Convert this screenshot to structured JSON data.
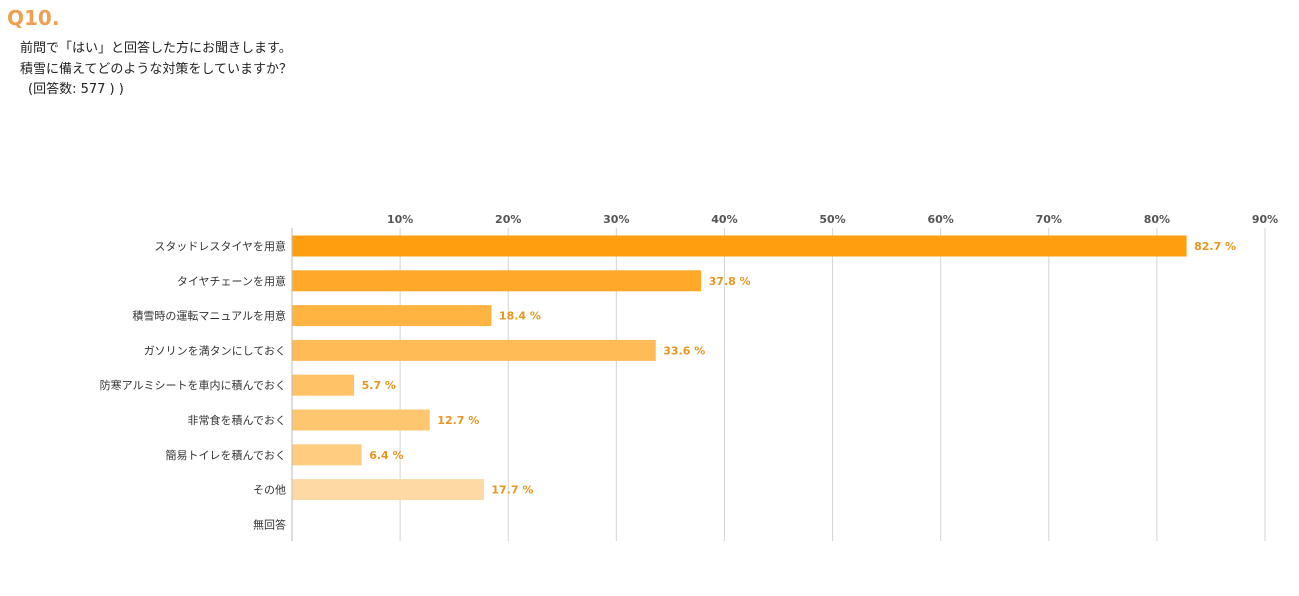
{
  "question": {
    "number": "Q10.",
    "lines": [
      "前問で「はい」と回答した方にお聞きします。",
      "積雪に備えてどのような対策をしていますか？",
      "(回答数: 577 ) )"
    ]
  },
  "chart_data": {
    "type": "bar",
    "orientation": "horizontal",
    "title": "",
    "xlabel": "",
    "ylabel": "",
    "xlim": [
      0,
      90
    ],
    "ticks": [
      "10%",
      "20%",
      "30%",
      "40%",
      "50%",
      "60%",
      "70%",
      "80%",
      "90%"
    ],
    "tick_values": [
      10,
      20,
      30,
      40,
      50,
      60,
      70,
      80,
      90
    ],
    "grid": true,
    "categories": [
      "スタッドレスタイヤを用意",
      "タイヤチェーンを用意",
      "積雪時の運転マニュアルを用意",
      "ガソリンを満タンにしておく",
      "防寒アルミシートを車内に積んでおく",
      "非常食を積んでおく",
      "簡易トイレを積んでおく",
      "その他",
      "無回答"
    ],
    "values": [
      82.7,
      37.8,
      18.4,
      33.6,
      5.7,
      12.7,
      6.4,
      17.7,
      null
    ],
    "value_labels": [
      "82.7 %",
      "37.8 %",
      "18.4 %",
      "33.6 %",
      "5.7 %",
      "12.7 %",
      "6.4 %",
      "17.7 %",
      ""
    ],
    "colors": [
      "#ff9f0f",
      "#ffa82a",
      "#ffb340",
      "#ffbb55",
      "#ffc266",
      "#ffc670",
      "#ffcc80",
      "#ffd9a3",
      "#ffe0b3"
    ],
    "label_color": "#e8961e"
  }
}
